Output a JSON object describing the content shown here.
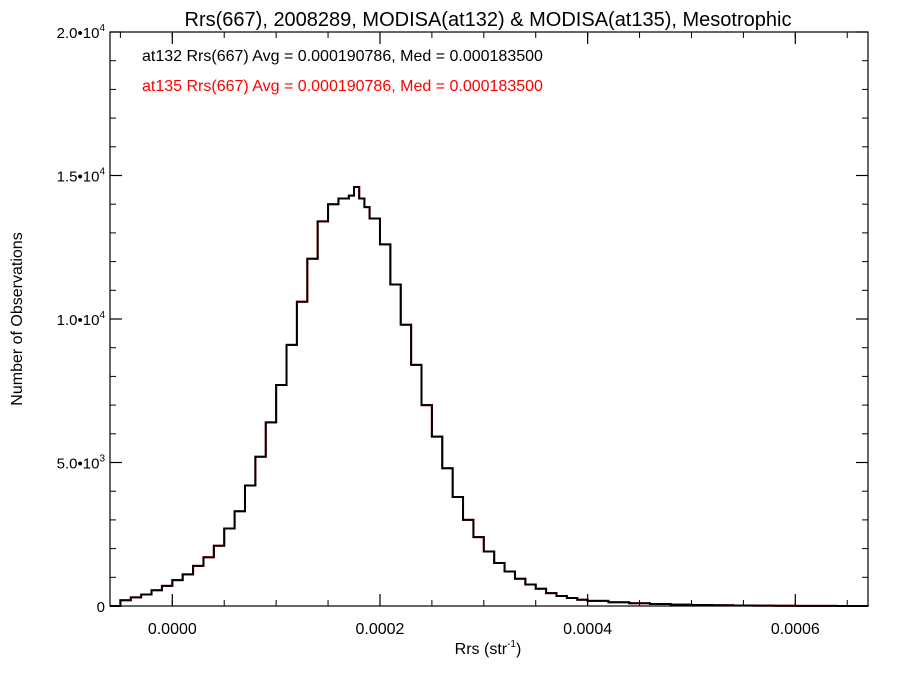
{
  "chart_data": {
    "type": "line",
    "title": "Rrs(667), 2008289, MODISA(at132) & MODISA(at135), Mesotrophic",
    "xlabel": "Rrs (str",
    "xlabel_sup": "-1",
    "xlabel_suffix": ")",
    "ylabel": "Number of Observations",
    "xlim": [
      -6e-05,
      0.00067
    ],
    "ylim": [
      0,
      20000
    ],
    "x_ticks": [
      0.0,
      0.0002,
      0.0004,
      0.0006
    ],
    "x_tick_labels": [
      "0.0000",
      "0.0002",
      "0.0004",
      "0.0006"
    ],
    "y_ticks": [
      0,
      5000,
      10000,
      15000,
      20000
    ],
    "y_tick_labels": [
      {
        "base": "0",
        "exp": ""
      },
      {
        "base": "5.0•10",
        "exp": "3"
      },
      {
        "base": "1.0•10",
        "exp": "4"
      },
      {
        "base": "1.5•10",
        "exp": "4"
      },
      {
        "base": "2.0•10",
        "exp": "4"
      }
    ],
    "grid": false,
    "legend_position": "top-left",
    "annotations": [
      {
        "text": "at132 Rrs(667) Avg = 0.000190786, Med = 0.000183500",
        "color": "#000000"
      },
      {
        "text": "at135 Rrs(667) Avg = 0.000190786, Med = 0.000183500",
        "color": "#ff0000"
      }
    ],
    "series": [
      {
        "color": "#ff0000",
        "x": [
          -6e-05,
          -5e-05,
          -4e-05,
          -3e-05,
          -2e-05,
          -1e-05,
          0.0,
          1e-05,
          2e-05,
          3e-05,
          4e-05,
          5e-05,
          6e-05,
          7e-05,
          8e-05,
          9e-05,
          0.0001,
          0.00011,
          0.00012,
          0.00013,
          0.00014,
          0.00015,
          0.00016,
          0.00017,
          0.000175,
          0.00018,
          0.000185,
          0.00019,
          0.0002,
          0.00021,
          0.00022,
          0.00023,
          0.00024,
          0.00025,
          0.00026,
          0.00027,
          0.00028,
          0.00029,
          0.0003,
          0.00031,
          0.00032,
          0.00033,
          0.00034,
          0.00035,
          0.00036,
          0.00037,
          0.00038,
          0.00039,
          0.0004,
          0.00042,
          0.00044,
          0.00046,
          0.00048,
          0.0005,
          0.00052,
          0.00054,
          0.00056,
          0.00058,
          0.0006,
          0.00062,
          0.00064,
          0.00067
        ],
        "y": [
          0,
          200,
          300,
          400,
          550,
          700,
          900,
          1100,
          1400,
          1700,
          2100,
          2700,
          3300,
          4200,
          5200,
          6400,
          7700,
          9100,
          10600,
          12100,
          13400,
          14000,
          14200,
          14300,
          14600,
          14200,
          13900,
          13500,
          12600,
          11200,
          9800,
          8400,
          7000,
          5900,
          4800,
          3800,
          3000,
          2400,
          1900,
          1500,
          1200,
          950,
          750,
          600,
          450,
          350,
          280,
          220,
          180,
          130,
          95,
          70,
          50,
          35,
          25,
          18,
          12,
          8,
          5,
          3,
          2,
          0
        ]
      },
      {
        "color": "#000000",
        "x": [
          -6e-05,
          -5e-05,
          -4e-05,
          -3e-05,
          -2e-05,
          -1e-05,
          0.0,
          1e-05,
          2e-05,
          3e-05,
          4e-05,
          5e-05,
          6e-05,
          7e-05,
          8e-05,
          9e-05,
          0.0001,
          0.00011,
          0.00012,
          0.00013,
          0.00014,
          0.00015,
          0.00016,
          0.00017,
          0.000175,
          0.00018,
          0.000185,
          0.00019,
          0.0002,
          0.00021,
          0.00022,
          0.00023,
          0.00024,
          0.00025,
          0.00026,
          0.00027,
          0.00028,
          0.00029,
          0.0003,
          0.00031,
          0.00032,
          0.00033,
          0.00034,
          0.00035,
          0.00036,
          0.00037,
          0.00038,
          0.00039,
          0.0004,
          0.00042,
          0.00044,
          0.00046,
          0.00048,
          0.0005,
          0.00052,
          0.00054,
          0.00056,
          0.00058,
          0.0006,
          0.00062,
          0.00064,
          0.00067
        ],
        "y": [
          0,
          200,
          300,
          400,
          550,
          700,
          900,
          1100,
          1400,
          1700,
          2100,
          2700,
          3300,
          4200,
          5200,
          6400,
          7700,
          9100,
          10600,
          12100,
          13400,
          14000,
          14200,
          14300,
          14600,
          14200,
          13900,
          13500,
          12600,
          11200,
          9800,
          8400,
          7000,
          5900,
          4800,
          3800,
          3000,
          2400,
          1900,
          1500,
          1200,
          950,
          750,
          600,
          450,
          350,
          280,
          220,
          180,
          130,
          95,
          70,
          50,
          35,
          25,
          18,
          12,
          8,
          5,
          3,
          2,
          0
        ]
      }
    ]
  }
}
